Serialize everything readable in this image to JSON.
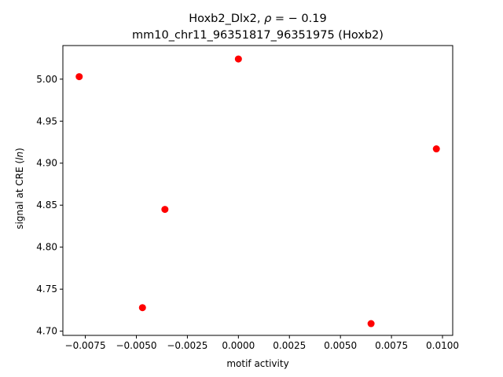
{
  "chart_data": {
    "type": "scatter",
    "title_line1_prefix": "Hoxb2_Dlx2, ",
    "title_line1_rho": "ρ",
    "title_line1_suffix": " = − 0.19",
    "title_line2": "mm10_chr11_96351817_96351975 (Hoxb2)",
    "xlabel": "motif activity",
    "ylabel_prefix": "signal at CRE (",
    "ylabel_italic": "ln",
    "ylabel_suffix": ")",
    "xlim": [
      -0.0086,
      0.0105
    ],
    "ylim": [
      4.695,
      5.04
    ],
    "xticks": [
      -0.0075,
      -0.005,
      -0.0025,
      0.0,
      0.0025,
      0.005,
      0.0075,
      0.01
    ],
    "xtick_labels": [
      "−0.0075",
      "−0.0050",
      "−0.0025",
      "0.0000",
      "0.0025",
      "0.0050",
      "0.0075",
      "0.0100"
    ],
    "yticks": [
      4.7,
      4.75,
      4.8,
      4.85,
      4.9,
      4.95,
      5.0
    ],
    "ytick_labels": [
      "4.70",
      "4.75",
      "4.80",
      "4.85",
      "4.90",
      "4.95",
      "5.00"
    ],
    "grid": false,
    "marker_color": "#ff0000",
    "points": [
      {
        "x": -0.0078,
        "y": 5.003
      },
      {
        "x": -0.0047,
        "y": 4.728
      },
      {
        "x": -0.0036,
        "y": 4.845
      },
      {
        "x": 0.0,
        "y": 5.024
      },
      {
        "x": 0.0065,
        "y": 4.709
      },
      {
        "x": 0.0097,
        "y": 4.917
      }
    ]
  }
}
